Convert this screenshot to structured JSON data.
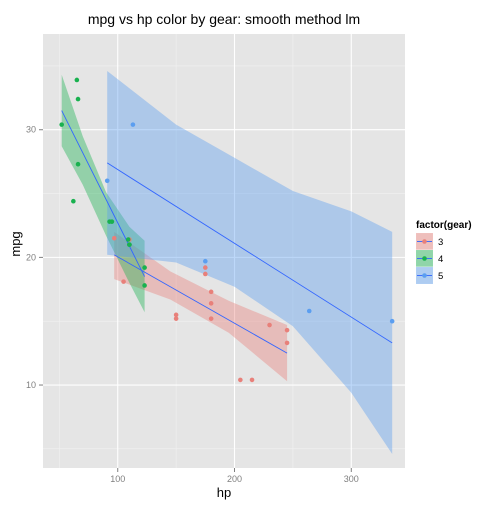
{
  "chart_data": {
    "type": "scatter",
    "title": "mpg vs hp color by gear: smooth method lm",
    "xlabel": "hp",
    "ylabel": "mpg",
    "xlim": [
      36,
      346
    ],
    "ylim": [
      3.5,
      37.5
    ],
    "x_ticks": [
      100,
      200,
      300
    ],
    "y_ticks": [
      10,
      20,
      30
    ],
    "grid": true,
    "legend": {
      "title": "factor(gear)",
      "placement": "right",
      "entries": [
        "3",
        "4",
        "5"
      ]
    },
    "colors": {
      "3": "#e8807a",
      "4": "#19b14f",
      "5": "#5b9ef0",
      "panel_background": "#e5e5e5",
      "grid_line": "#ffffff"
    },
    "series": [
      {
        "name": "3",
        "points": [
          [
            110,
            21.4
          ],
          [
            175,
            18.7
          ],
          [
            105,
            18.1
          ],
          [
            245,
            14.3
          ],
          [
            180,
            16.4
          ],
          [
            180,
            17.3
          ],
          [
            180,
            15.2
          ],
          [
            205,
            10.4
          ],
          [
            215,
            10.4
          ],
          [
            230,
            14.7
          ],
          [
            97,
            21.5
          ],
          [
            150,
            15.5
          ],
          [
            150,
            15.2
          ],
          [
            245,
            13.3
          ],
          [
            175,
            19.2
          ]
        ],
        "fit": {
          "x": [
            97,
            245
          ],
          "y": [
            20.2,
            12.5
          ]
        },
        "band": {
          "x": [
            97,
            145,
            195,
            245
          ],
          "upper": [
            22.0,
            18.9,
            16.6,
            14.7
          ],
          "lower": [
            18.3,
            16.7,
            14.1,
            10.3
          ]
        }
      },
      {
        "name": "4",
        "points": [
          [
            110,
            21.0
          ],
          [
            110,
            21.0
          ],
          [
            93,
            22.8
          ],
          [
            62,
            24.4
          ],
          [
            95,
            22.8
          ],
          [
            123,
            19.2
          ],
          [
            123,
            17.8
          ],
          [
            66,
            32.4
          ],
          [
            52,
            30.4
          ],
          [
            65,
            33.9
          ],
          [
            66,
            27.3
          ],
          [
            109,
            21.4
          ]
        ],
        "fit": {
          "x": [
            52,
            123
          ],
          "y": [
            31.5,
            18.5
          ]
        },
        "band": {
          "x": [
            52,
            70,
            90,
            110,
            123
          ],
          "upper": [
            34.3,
            29.5,
            25.1,
            22.4,
            21.3
          ],
          "lower": [
            28.7,
            25.7,
            21.7,
            18.0,
            15.7
          ]
        }
      },
      {
        "name": "5",
        "points": [
          [
            91,
            26.0
          ],
          [
            113,
            30.4
          ],
          [
            264,
            15.8
          ],
          [
            175,
            19.7
          ],
          [
            335,
            15.0
          ]
        ],
        "fit": {
          "x": [
            91,
            335
          ],
          "y": [
            27.4,
            13.3
          ]
        },
        "band": {
          "x": [
            91,
            150,
            200,
            250,
            300,
            335
          ],
          "upper": [
            34.6,
            30.4,
            27.8,
            25.2,
            23.6,
            22.0
          ],
          "lower": [
            20.2,
            19.6,
            17.7,
            14.6,
            9.4,
            4.6
          ]
        }
      }
    ]
  }
}
